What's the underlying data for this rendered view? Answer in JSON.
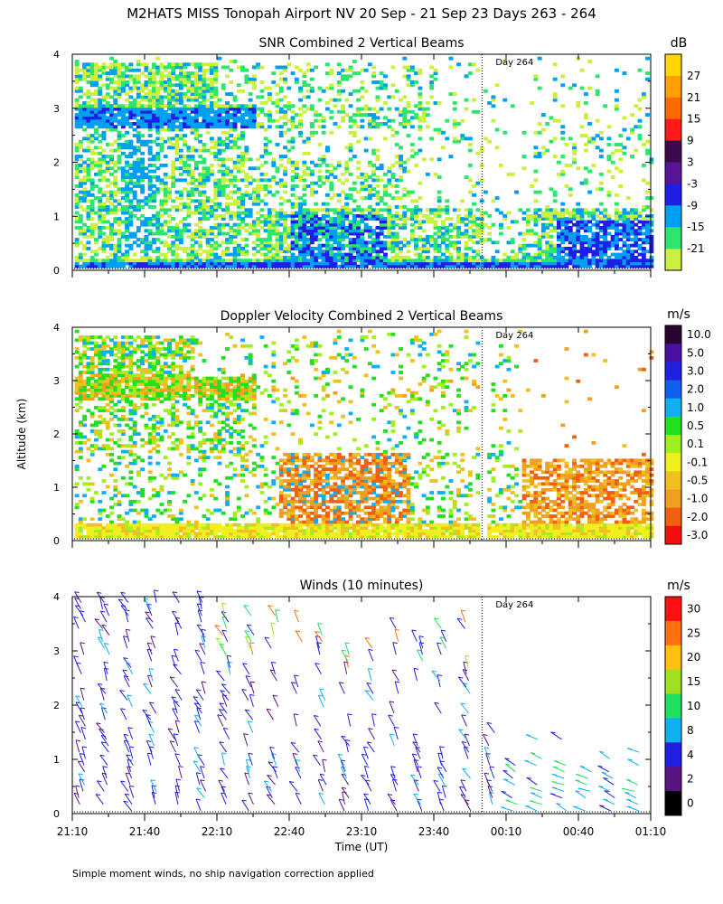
{
  "figure": {
    "title": "M2HATS MISS Tonopah Airport NV  20 Sep - 21 Sep 23 Days 263 - 264",
    "ylabel": "Altitude (km)",
    "xlabel": "Time (UT)",
    "footnote": "Simple moment winds, no ship navigation correction applied",
    "day_marker_label": "Day 264"
  },
  "chart_data": [
    {
      "type": "heatmap",
      "title": "SNR Combined 2 Vertical Beams",
      "ylim": [
        0,
        4
      ],
      "yticks": [
        "0",
        "1",
        "2",
        "3",
        "4"
      ],
      "xlim": [
        0,
        240
      ],
      "day_boundary_minutes": 170,
      "colorbar": {
        "unit": "dB",
        "labels": [
          "27",
          "21",
          "15",
          "9",
          "3",
          "-3",
          "-9",
          "-15",
          "-21"
        ],
        "colors": [
          "#ffd700",
          "#ffa000",
          "#ff6a00",
          "#ff1a1a",
          "#3a0a4a",
          "#5a1496",
          "#1e1ee6",
          "#00a0f0",
          "#2ee66e",
          "#ccf040"
        ]
      }
    },
    {
      "type": "heatmap",
      "title": "Doppler Velocity Combined 2 Vertical Beams",
      "ylim": [
        0,
        4
      ],
      "yticks": [
        "0",
        "1",
        "2",
        "3",
        "4"
      ],
      "xlim": [
        0,
        240
      ],
      "day_boundary_minutes": 170,
      "colorbar": {
        "unit": "m/s",
        "labels": [
          "10.0",
          "5.0",
          "3.0",
          "2.0",
          "1.0",
          "0.5",
          "0.1",
          "-0.1",
          "-0.5",
          "-1.0",
          "-2.0",
          "-3.0"
        ],
        "colors": [
          "#2a0430",
          "#4a10a0",
          "#2020e0",
          "#1060f0",
          "#10b0f0",
          "#20e020",
          "#a0f020",
          "#f0f020",
          "#f0c020",
          "#f0a020",
          "#f06010",
          "#f01010"
        ]
      }
    },
    {
      "type": "scatter",
      "title": "Winds (10 minutes)",
      "ylim": [
        0,
        4
      ],
      "yticks": [
        "0",
        "1",
        "2",
        "3",
        "4"
      ],
      "xlim": [
        0,
        240
      ],
      "day_boundary_minutes": 170,
      "xticks": [
        "21:10",
        "21:40",
        "22:10",
        "22:40",
        "23:10",
        "23:40",
        "00:10",
        "00:40",
        "01:10"
      ],
      "colorbar": {
        "unit": "m/s",
        "labels": [
          "30",
          "25",
          "20",
          "15",
          "10",
          "8",
          "4",
          "2",
          "0"
        ],
        "colors": [
          "#ff1010",
          "#ff7010",
          "#ffc010",
          "#a0e020",
          "#20e060",
          "#10b0f0",
          "#2020e0",
          "#5a1480",
          "#000000"
        ]
      }
    }
  ]
}
